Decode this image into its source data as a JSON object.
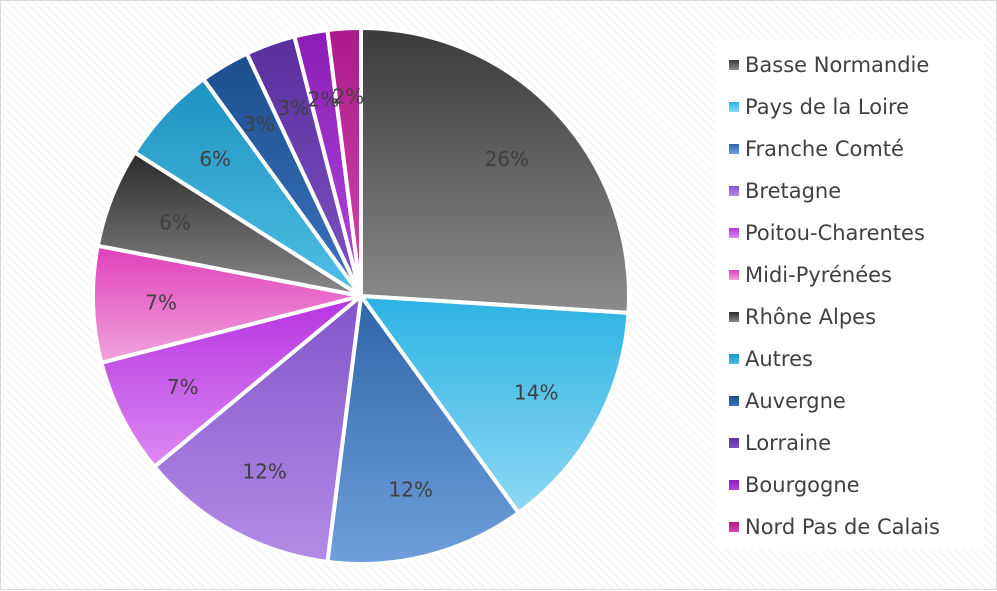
{
  "chart_data": {
    "type": "pie",
    "title": "",
    "categories": [
      "Basse Normandie",
      "Pays de la Loire",
      "Franche Comté",
      "Bretagne",
      "Poitou-Charentes",
      "Midi-Pyrénées",
      "Rhône Alpes",
      "Autres",
      "Auvergne",
      "Lorraine",
      "Bourgogne",
      "Nord Pas de Calais"
    ],
    "values": [
      26,
      14,
      12,
      12,
      7,
      7,
      6,
      6,
      3,
      3,
      2,
      2
    ],
    "data_labels": [
      "26%",
      "14%",
      "12%",
      "12%",
      "7%",
      "7%",
      "6%",
      "6%",
      "3%",
      "3%",
      "2%",
      "2%"
    ],
    "legend_position": "right",
    "colors": [
      [
        "#3a3a3a",
        "#8c8c8c"
      ],
      [
        "#2bb3e3",
        "#8fd8f4"
      ],
      [
        "#2e65a8",
        "#6f9fdc"
      ],
      [
        "#8255c9",
        "#b48ce6"
      ],
      [
        "#b533e0",
        "#dc8af2"
      ],
      [
        "#e03fba",
        "#f0a4dc"
      ],
      [
        "#2b2b2b",
        "#8a8a8a"
      ],
      [
        "#1e93c0",
        "#4fbfe6"
      ],
      [
        "#1d4e8c",
        "#3a74bf"
      ],
      [
        "#5a2f9c",
        "#7e52c4"
      ],
      [
        "#8b1fb5",
        "#b046dc"
      ],
      [
        "#ac1a8a",
        "#d447af"
      ]
    ]
  }
}
